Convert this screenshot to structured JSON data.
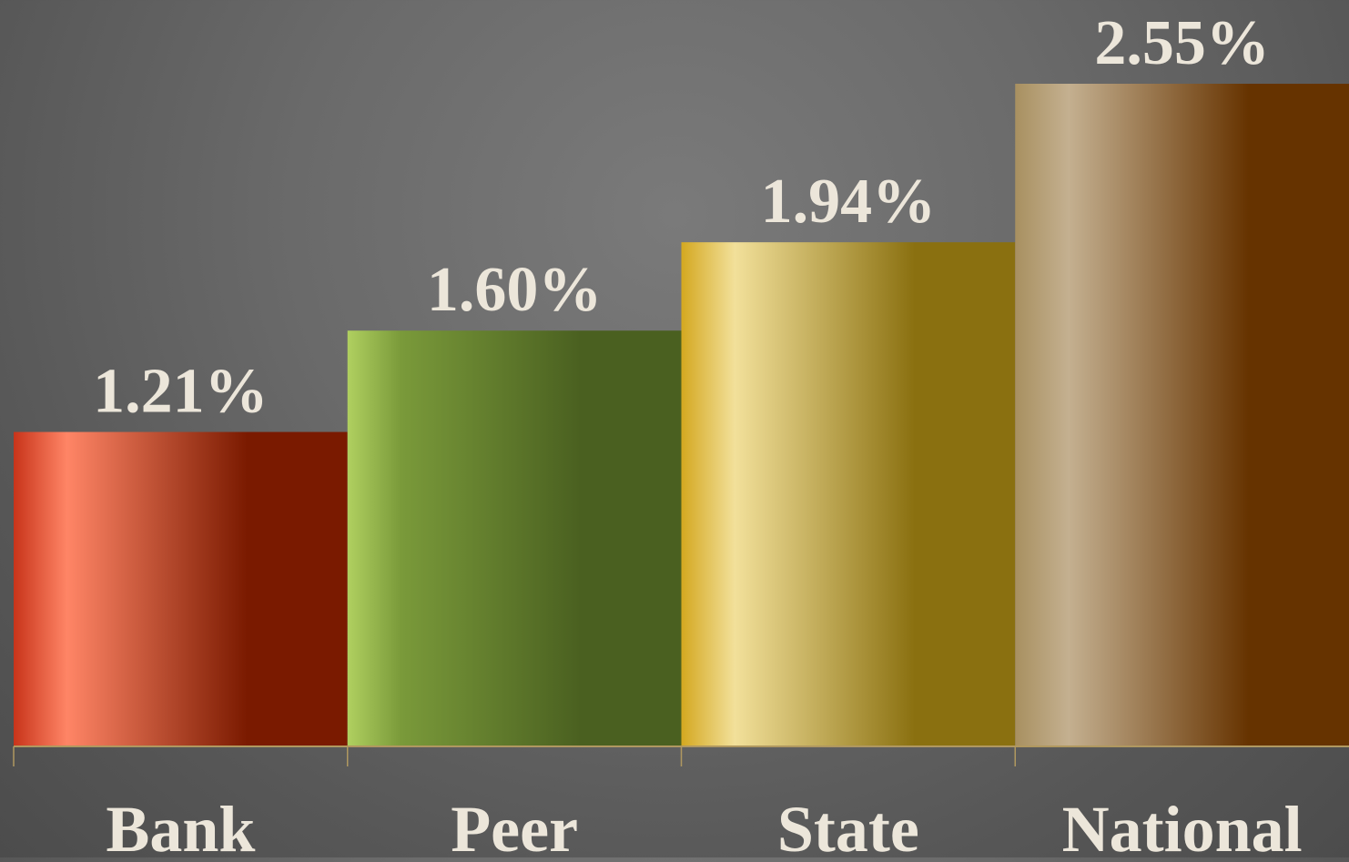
{
  "chart_data": {
    "type": "bar",
    "categories": [
      "Bank",
      "Peer",
      "State",
      "National"
    ],
    "values": [
      1.21,
      1.6,
      1.94,
      2.55
    ],
    "value_labels": [
      "1.21%",
      "1.60%",
      "1.94%",
      "2.55%"
    ],
    "title": "",
    "xlabel": "",
    "ylabel": "",
    "ylim": [
      0,
      2.55
    ],
    "grid": false,
    "legend": "none",
    "colors": {
      "Bank": [
        "#c8341a",
        "#ff8566",
        "#7a1a00"
      ],
      "Peer": [
        "#b0d060",
        "#7a9a3a",
        "#4a6020"
      ],
      "State": [
        "#d4a820",
        "#f2e09a",
        "#8a7010"
      ],
      "National": [
        "#a89060",
        "#c4b090",
        "#663300"
      ]
    },
    "label_color": "#ece6da",
    "axis_color": "#b09860"
  }
}
